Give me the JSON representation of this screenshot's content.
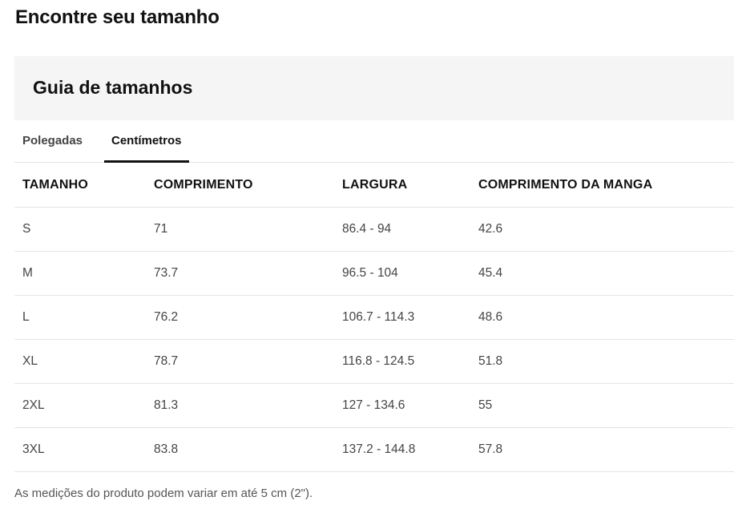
{
  "page": {
    "title": "Encontre seu tamanho"
  },
  "guide": {
    "title": "Guia de tamanhos"
  },
  "tabs": [
    {
      "label": "Polegadas",
      "active": false
    },
    {
      "label": "Centímetros",
      "active": true
    }
  ],
  "table": {
    "headers": [
      "TAMANHO",
      "COMPRIMENTO",
      "LARGURA",
      "COMPRIMENTO DA MANGA"
    ],
    "rows": [
      [
        "S",
        "71",
        "86.4 - 94",
        "42.6"
      ],
      [
        "M",
        "73.7",
        "96.5 - 104",
        "45.4"
      ],
      [
        "L",
        "76.2",
        "106.7 - 114.3",
        "48.6"
      ],
      [
        "XL",
        "78.7",
        "116.8 - 124.5",
        "51.8"
      ],
      [
        "2XL",
        "81.3",
        "127 - 134.6",
        "55"
      ],
      [
        "3XL",
        "83.8",
        "137.2 - 144.8",
        "57.8"
      ]
    ]
  },
  "footnote": "As medições do produto podem variar em até 5 cm (2\")."
}
